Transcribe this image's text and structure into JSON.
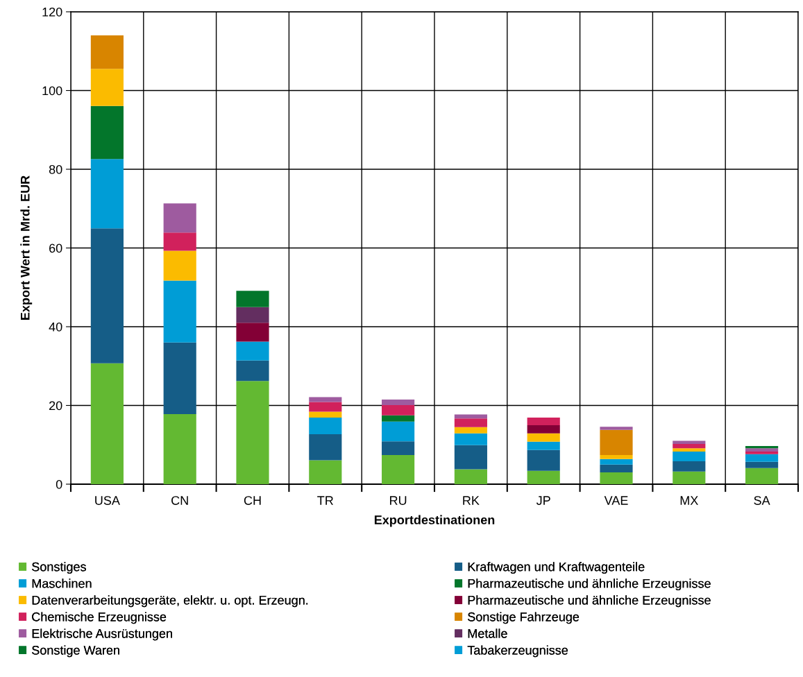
{
  "chart_data": {
    "type": "bar",
    "stacked": true,
    "xlabel": "Exportdestinationen",
    "ylabel": "Export Wert in Mrd. EUR",
    "categories": [
      "USA",
      "CN",
      "CH",
      "TR",
      "RU",
      "RK",
      "JP",
      "VAE",
      "MX",
      "SA"
    ],
    "ylim": [
      0,
      120
    ],
    "yticks": [
      0,
      20,
      40,
      60,
      80,
      100,
      120
    ],
    "grid": true,
    "legend": "bottom",
    "series": [
      {
        "name": "Sonstiges",
        "color": "#63b932",
        "values": [
          30.7,
          17.8,
          26.2,
          6.1,
          7.4,
          3.8,
          3.4,
          3.0,
          3.2,
          4.1
        ]
      },
      {
        "name": "Kraftwagen und Kraftwagenteile",
        "color": "#155d87",
        "values": [
          34.3,
          18.2,
          5.2,
          6.6,
          3.5,
          6.1,
          5.3,
          2.0,
          2.6,
          1.6
        ]
      },
      {
        "name": "Maschinen",
        "color": "#009dd6",
        "values": [
          17.6,
          15.7,
          4.8,
          4.2,
          5.0,
          3.0,
          2.1,
          1.4,
          2.5,
          1.9
        ]
      },
      {
        "name": "Pharmazeutische und ähnliche Erzeugnisse",
        "color": "#03762b",
        "values": [
          13.5,
          null,
          null,
          null,
          1.6,
          null,
          null,
          null,
          null,
          null
        ]
      },
      {
        "name": "Datenverarbeitungsgeräte, elektr. u. opt. Erzeugn.",
        "color": "#fbbb00",
        "values": [
          9.4,
          7.6,
          null,
          1.5,
          null,
          1.6,
          2.1,
          1.0,
          0.8,
          null
        ]
      },
      {
        "name": "Pharmazeutische und ähnliche Erzeugnisse",
        "color": "#830036",
        "values": [
          null,
          null,
          4.8,
          null,
          null,
          null,
          2.1,
          null,
          null,
          null
        ]
      },
      {
        "name": "Chemische Erzeugnisse",
        "color": "#d1215c",
        "values": [
          null,
          4.6,
          null,
          2.5,
          2.6,
          2.2,
          1.9,
          null,
          1.1,
          0.7
        ]
      },
      {
        "name": "Sonstige Fahrzeuge",
        "color": "#d88500",
        "values": [
          8.5,
          null,
          null,
          null,
          null,
          null,
          null,
          6.4,
          null,
          null
        ]
      },
      {
        "name": "Elektrische Ausrüstungen",
        "color": "#9e5b9f",
        "values": [
          null,
          7.4,
          null,
          1.2,
          1.4,
          1.0,
          null,
          0.8,
          0.8,
          0.8
        ]
      },
      {
        "name": "Metalle",
        "color": "#632e60",
        "values": [
          null,
          null,
          4.0,
          null,
          null,
          null,
          null,
          null,
          null,
          null
        ]
      },
      {
        "name": "Sonstige Waren",
        "color": "#03762b",
        "values": [
          null,
          null,
          4.1,
          null,
          null,
          null,
          null,
          null,
          null,
          0.6
        ]
      },
      {
        "name": "Tabakerzeugnisse",
        "color": "#009dd6",
        "values": [
          null,
          null,
          null,
          null,
          null,
          null,
          null,
          null,
          null,
          null
        ]
      }
    ]
  }
}
